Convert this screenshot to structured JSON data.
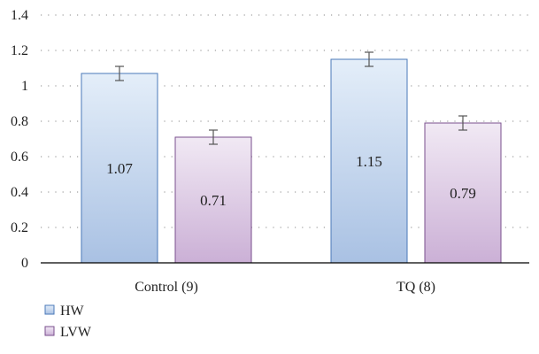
{
  "chart_data": {
    "type": "bar",
    "title": "",
    "xlabel": "",
    "ylabel": "",
    "categories": [
      "Control (9)",
      "TQ (8)"
    ],
    "series": [
      {
        "name": "HW",
        "values": [
          1.07,
          1.15
        ],
        "errors": [
          0.04,
          0.04
        ],
        "color_top": "#e4eef9",
        "color_bottom": "#a9c1e3",
        "stroke": "#4a78b8"
      },
      {
        "name": "LVW",
        "values": [
          0.71,
          0.79
        ],
        "errors": [
          0.04,
          0.04
        ],
        "color_top": "#f1e9f4",
        "color_bottom": "#cbb0d6",
        "stroke": "#7a4f8e"
      }
    ],
    "data_labels": [
      [
        "1.07",
        "1.15"
      ],
      [
        "0.71",
        "0.79"
      ]
    ],
    "yticks": [
      "0",
      "0.2",
      "0.4",
      "0.6",
      "0.8",
      "1",
      "1.2",
      "1.4"
    ],
    "ylim": [
      0,
      1.4
    ],
    "grid": "horizontal dotted",
    "legend_position": "bottom-left"
  }
}
